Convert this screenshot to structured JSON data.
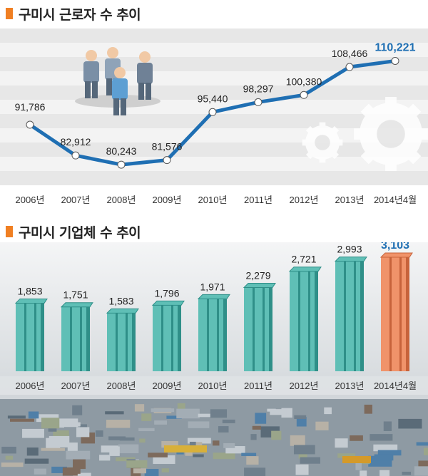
{
  "charts": [
    {
      "title": "구미시 근로자 수 추이",
      "chart_data": {
        "type": "line",
        "title": "구미시 근로자 수 추이",
        "categories": [
          "2006년",
          "2007년",
          "2008년",
          "2009년",
          "2010년",
          "2011년",
          "2012년",
          "2013년",
          "2014년4월"
        ],
        "values": [
          91786,
          82912,
          80243,
          81576,
          95440,
          98297,
          100380,
          108466,
          110221
        ],
        "value_labels": [
          "91,786",
          "82,912",
          "80,243",
          "81,576",
          "95,440",
          "98,297",
          "100,380",
          "108,466",
          "110,221"
        ],
        "highlight_index": 8,
        "grid": true,
        "colors": {
          "line": "#1f6fb3",
          "highlight_text": "#1f6fb3",
          "band_dark": "#e7e7e7",
          "band_light": "#f3f3f3"
        }
      }
    },
    {
      "title": "구미시 기업체 수 추이",
      "chart_data": {
        "type": "bar",
        "title": "구미시 기업체 수 추이",
        "categories": [
          "2006년",
          "2007년",
          "2008년",
          "2009년",
          "2010년",
          "2011년",
          "2012년",
          "2013년",
          "2014년4월"
        ],
        "values": [
          1853,
          1751,
          1583,
          1796,
          1971,
          2279,
          2721,
          2993,
          3103
        ],
        "value_labels": [
          "1,853",
          "1,751",
          "1,583",
          "1,796",
          "1,971",
          "2,279",
          "2,721",
          "2,993",
          "3,103"
        ],
        "highlight_index": 8,
        "colors": {
          "bar": "#5fbfb6",
          "bar_dark": "#2f8f88",
          "highlight_bar": "#f0936a",
          "highlight_bar_dark": "#c7633b",
          "highlight_text": "#1f6fb3"
        }
      }
    }
  ]
}
